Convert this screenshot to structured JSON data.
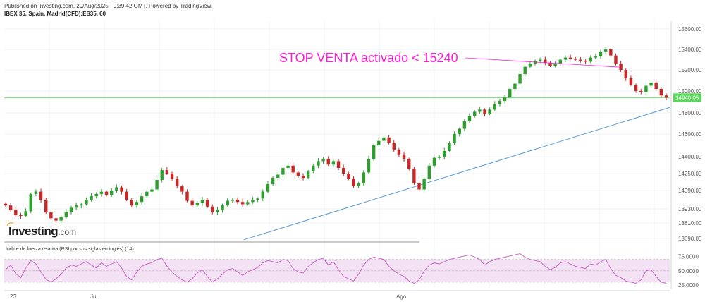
{
  "header": {
    "published": "Published on Investing.com, 29/Aug/2025 - 9:39:42 GMT, Powered by TradingView.",
    "symbol": "IBEX 35, Spain, Madrid(CFD):ES35, 60"
  },
  "logo": {
    "name": "Investing",
    "suffix": ".com"
  },
  "colors": {
    "up": "#2e9e2e",
    "down": "#c62828",
    "trendline": "#5b9bd5",
    "level": "#7fdc7f",
    "annotation": "#ff1fd2",
    "rsi": "#c55bc4",
    "rsi_band": "#f3e2f3"
  },
  "chart_data": [
    {
      "type": "candlestick",
      "title": "IBEX 35, Spain, Madrid(CFD):ES35, 60",
      "yaxis_ticks": [
        "15600.00",
        "15400.00",
        "15200.00",
        "15000.00",
        "14800.00",
        "14600.00",
        "14400.00",
        "14250.00",
        "14090.00",
        "13930.00",
        "13810.00",
        "13690.00"
      ],
      "xaxis_ticks": [
        "23",
        "Jul",
        "Ago"
      ],
      "current_price_label": "14940.05",
      "current_price": 14940.05,
      "annotation": "STOP VENTA activado < 15240",
      "stop_level": 15240,
      "trendline": [
        {
          "x": 0.36,
          "y": 13680
        },
        {
          "x": 1.0,
          "y": 14850
        }
      ],
      "grid": true,
      "closes": [
        13960,
        13920,
        13880,
        13870,
        13910,
        14060,
        14080,
        14010,
        13900,
        13850,
        13830,
        13860,
        13900,
        13940,
        13960,
        13970,
        14010,
        14040,
        14060,
        14080,
        14050,
        14090,
        14120,
        14080,
        14010,
        13960,
        13990,
        14040,
        14080,
        14100,
        14190,
        14280,
        14250,
        14200,
        14130,
        14080,
        14000,
        13960,
        13980,
        14010,
        13950,
        13900,
        13920,
        13960,
        14000,
        14010,
        13990,
        13970,
        13990,
        14010,
        14020,
        14080,
        14150,
        14210,
        14240,
        14300,
        14320,
        14260,
        14230,
        14210,
        14270,
        14320,
        14360,
        14380,
        14330,
        14360,
        14300,
        14250,
        14200,
        14130,
        14160,
        14260,
        14380,
        14500,
        14540,
        14570,
        14520,
        14460,
        14420,
        14380,
        14290,
        14160,
        14100,
        14200,
        14320,
        14390,
        14400,
        14450,
        14520,
        14600,
        14650,
        14720,
        14770,
        14810,
        14830,
        14790,
        14830,
        14880,
        14910,
        14940,
        15020,
        15070,
        15160,
        15230,
        15260,
        15290,
        15300,
        15270,
        15240,
        15260,
        15300,
        15320,
        15310,
        15300,
        15290,
        15280,
        15320,
        15330,
        15380,
        15400,
        15340,
        15260,
        15200,
        15120,
        15060,
        15000,
        14990,
        15050,
        15080,
        15020,
        14960,
        14940
      ]
    },
    {
      "type": "line",
      "title": "Índice de fuerza relativa (RSI por sus siglas en inglés) (14)",
      "yaxis_ticks": [
        "75.0000",
        "50.0000",
        "25.0000"
      ],
      "ylim": [
        20,
        82
      ],
      "bands": [
        30,
        70
      ],
      "values": [
        52,
        60,
        45,
        38,
        55,
        68,
        62,
        48,
        35,
        30,
        36,
        44,
        55,
        60,
        58,
        62,
        66,
        60,
        55,
        64,
        58,
        62,
        66,
        55,
        40,
        34,
        48,
        58,
        62,
        64,
        70,
        72,
        58,
        48,
        40,
        34,
        30,
        36,
        46,
        52,
        40,
        30,
        36,
        44,
        52,
        54,
        48,
        42,
        48,
        52,
        56,
        64,
        68,
        66,
        64,
        70,
        68,
        54,
        48,
        46,
        58,
        64,
        70,
        72,
        60,
        66,
        52,
        40,
        36,
        32,
        44,
        60,
        70,
        74,
        72,
        70,
        58,
        50,
        44,
        40,
        32,
        28,
        34,
        50,
        60,
        64,
        62,
        66,
        70,
        72,
        74,
        76,
        78,
        74,
        70,
        60,
        66,
        70,
        72,
        74,
        76,
        78,
        80,
        74,
        70,
        68,
        66,
        58,
        52,
        56,
        64,
        66,
        62,
        58,
        56,
        54,
        62,
        60,
        66,
        70,
        54,
        42,
        38,
        32,
        30,
        28,
        34,
        50,
        52,
        40,
        30,
        28
      ]
    }
  ]
}
